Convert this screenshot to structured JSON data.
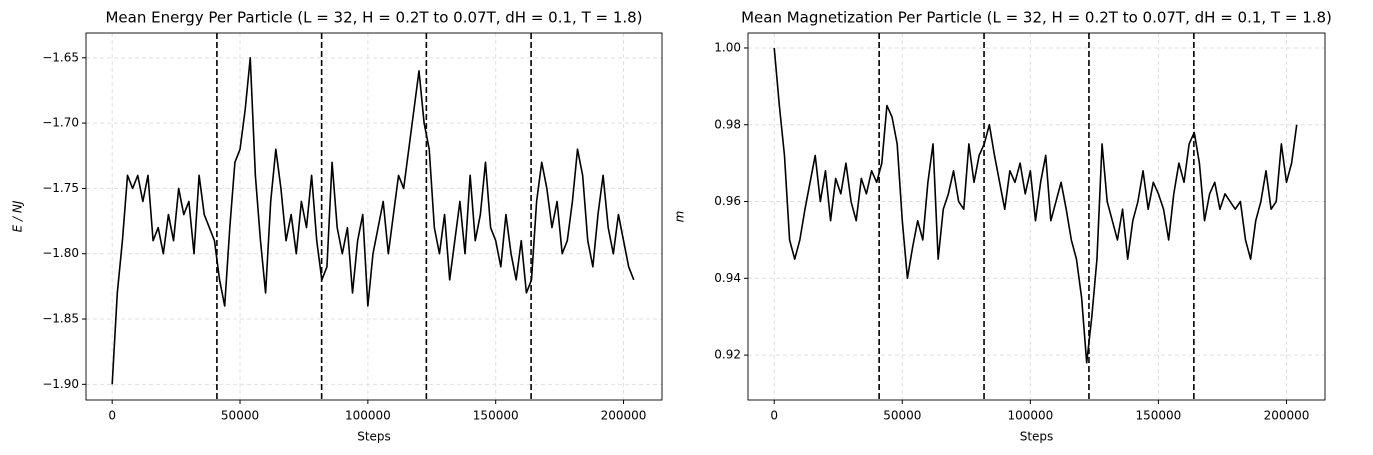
{
  "chart_data": [
    {
      "type": "line",
      "title": "Mean Energy Per Particle (L = 32,  H = 0.2T to 0.07T, dH = 0.1, T = 1.8)",
      "xlabel": "Steps",
      "ylabel": "E / NJ",
      "x": [
        0,
        2000,
        4000,
        6000,
        8000,
        10000,
        12000,
        14000,
        16000,
        18000,
        20000,
        22000,
        24000,
        26000,
        28000,
        30000,
        32000,
        34000,
        36000,
        38000,
        40000,
        42000,
        44000,
        46000,
        48000,
        50000,
        52000,
        54000,
        56000,
        58000,
        60000,
        62000,
        64000,
        66000,
        68000,
        70000,
        72000,
        74000,
        76000,
        78000,
        80000,
        82000,
        84000,
        86000,
        88000,
        90000,
        92000,
        94000,
        96000,
        98000,
        100000,
        102000,
        104000,
        106000,
        108000,
        110000,
        112000,
        114000,
        116000,
        118000,
        120000,
        122000,
        124000,
        126000,
        128000,
        130000,
        132000,
        134000,
        136000,
        138000,
        140000,
        142000,
        144000,
        146000,
        148000,
        150000,
        152000,
        154000,
        156000,
        158000,
        160000,
        162000,
        164000,
        166000,
        168000,
        170000,
        172000,
        174000,
        176000,
        178000,
        180000,
        182000,
        184000,
        186000,
        188000,
        190000,
        192000,
        194000,
        196000,
        198000,
        200000,
        202000,
        204000
      ],
      "series": [
        {
          "color": "#000000",
          "values": [
            -1.9,
            -1.83,
            -1.79,
            -1.74,
            -1.75,
            -1.74,
            -1.76,
            -1.74,
            -1.79,
            -1.78,
            -1.8,
            -1.77,
            -1.79,
            -1.75,
            -1.77,
            -1.76,
            -1.8,
            -1.74,
            -1.77,
            -1.78,
            -1.79,
            -1.82,
            -1.84,
            -1.78,
            -1.73,
            -1.72,
            -1.69,
            -1.65,
            -1.74,
            -1.79,
            -1.83,
            -1.76,
            -1.72,
            -1.75,
            -1.79,
            -1.77,
            -1.8,
            -1.76,
            -1.78,
            -1.74,
            -1.79,
            -1.82,
            -1.81,
            -1.73,
            -1.78,
            -1.8,
            -1.78,
            -1.83,
            -1.79,
            -1.77,
            -1.84,
            -1.8,
            -1.78,
            -1.76,
            -1.8,
            -1.77,
            -1.74,
            -1.75,
            -1.72,
            -1.69,
            -1.66,
            -1.7,
            -1.72,
            -1.78,
            -1.8,
            -1.77,
            -1.82,
            -1.79,
            -1.76,
            -1.8,
            -1.74,
            -1.79,
            -1.77,
            -1.73,
            -1.78,
            -1.79,
            -1.81,
            -1.77,
            -1.8,
            -1.82,
            -1.79,
            -1.83,
            -1.82,
            -1.76,
            -1.73,
            -1.75,
            -1.78,
            -1.76,
            -1.8,
            -1.79,
            -1.76,
            -1.72,
            -1.74,
            -1.79,
            -1.81,
            -1.77,
            -1.74,
            -1.78,
            -1.8,
            -1.77,
            -1.79,
            -1.81,
            -1.82
          ]
        }
      ],
      "vlines": [
        40960,
        81920,
        122880,
        163840
      ],
      "xlim": [
        -10240,
        215040
      ],
      "ylim": [
        -1.912,
        -1.631
      ],
      "xticks": [
        0,
        50000,
        100000,
        150000,
        200000
      ],
      "yticks": [
        {
          "value": -1.65,
          "label": "−1.65"
        },
        {
          "value": -1.7,
          "label": "−1.70"
        },
        {
          "value": -1.75,
          "label": "−1.75"
        },
        {
          "value": -1.8,
          "label": "−1.80"
        },
        {
          "value": -1.85,
          "label": "−1.85"
        },
        {
          "value": -1.9,
          "label": "−1.90"
        }
      ],
      "grid": true
    },
    {
      "type": "line",
      "title": "Mean Magnetization Per Particle (L = 32, H = 0.2T to 0.07T, dH = 0.1, T = 1.8)",
      "xlabel": "Steps",
      "ylabel": "m",
      "x": [
        0,
        2000,
        4000,
        6000,
        8000,
        10000,
        12000,
        14000,
        16000,
        18000,
        20000,
        22000,
        24000,
        26000,
        28000,
        30000,
        32000,
        34000,
        36000,
        38000,
        40000,
        42000,
        44000,
        46000,
        48000,
        50000,
        52000,
        54000,
        56000,
        58000,
        60000,
        62000,
        64000,
        66000,
        68000,
        70000,
        72000,
        74000,
        76000,
        78000,
        80000,
        82000,
        84000,
        86000,
        88000,
        90000,
        92000,
        94000,
        96000,
        98000,
        100000,
        102000,
        104000,
        106000,
        108000,
        110000,
        112000,
        114000,
        116000,
        118000,
        120000,
        122000,
        124000,
        126000,
        128000,
        130000,
        132000,
        134000,
        136000,
        138000,
        140000,
        142000,
        144000,
        146000,
        148000,
        150000,
        152000,
        154000,
        156000,
        158000,
        160000,
        162000,
        164000,
        166000,
        168000,
        170000,
        172000,
        174000,
        176000,
        178000,
        180000,
        182000,
        184000,
        186000,
        188000,
        190000,
        192000,
        194000,
        196000,
        198000,
        200000,
        202000,
        204000
      ],
      "series": [
        {
          "color": "#000000",
          "values": [
            1.0,
            0.985,
            0.972,
            0.95,
            0.945,
            0.95,
            0.958,
            0.965,
            0.972,
            0.96,
            0.968,
            0.955,
            0.966,
            0.962,
            0.97,
            0.96,
            0.955,
            0.966,
            0.962,
            0.968,
            0.965,
            0.97,
            0.985,
            0.982,
            0.975,
            0.955,
            0.94,
            0.948,
            0.955,
            0.95,
            0.965,
            0.975,
            0.945,
            0.958,
            0.962,
            0.968,
            0.96,
            0.958,
            0.975,
            0.965,
            0.972,
            0.975,
            0.98,
            0.972,
            0.965,
            0.958,
            0.968,
            0.965,
            0.97,
            0.962,
            0.968,
            0.955,
            0.965,
            0.972,
            0.955,
            0.96,
            0.965,
            0.958,
            0.95,
            0.945,
            0.935,
            0.918,
            0.93,
            0.945,
            0.975,
            0.96,
            0.955,
            0.95,
            0.958,
            0.945,
            0.955,
            0.96,
            0.968,
            0.958,
            0.965,
            0.962,
            0.958,
            0.95,
            0.962,
            0.97,
            0.965,
            0.975,
            0.978,
            0.97,
            0.955,
            0.962,
            0.965,
            0.958,
            0.962,
            0.96,
            0.958,
            0.96,
            0.95,
            0.945,
            0.955,
            0.96,
            0.968,
            0.958,
            0.96,
            0.975,
            0.965,
            0.97,
            0.98
          ]
        }
      ],
      "vlines": [
        40960,
        81920,
        122880,
        163840
      ],
      "xlim": [
        -10240,
        215040
      ],
      "ylim": [
        0.9083,
        1.0039
      ],
      "xticks": [
        0,
        50000,
        100000,
        150000,
        200000
      ],
      "yticks": [
        0.92,
        0.94,
        0.96,
        0.98,
        {
          "value": 1,
          "label": "1.00"
        }
      ],
      "grid": true
    }
  ]
}
